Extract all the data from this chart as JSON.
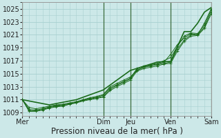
{
  "title": "",
  "xlabel": "Pression niveau de la mer( hPa )",
  "bg_color": "#cce8e8",
  "grid_color": "#a8d0d0",
  "line_color": "#1a6b1a",
  "ylim": [
    1008.5,
    1026.0
  ],
  "yticks": [
    1009,
    1011,
    1013,
    1015,
    1017,
    1019,
    1021,
    1023,
    1025
  ],
  "day_labels": [
    "Mer",
    "Dim",
    "Jeu",
    "Ven",
    "Sam"
  ],
  "day_positions": [
    0,
    12,
    16,
    22,
    28
  ],
  "vline_color": "#4a7a4a",
  "series": [
    [
      1011.0,
      1009.8,
      1009.6,
      1009.8,
      1010.0,
      1010.2,
      1010.3,
      1010.5,
      1010.7,
      1011.0,
      1011.3,
      1011.5,
      1011.8,
      1013.0,
      1013.5,
      1014.0,
      1014.5,
      1015.5,
      1016.0,
      1016.3,
      1016.5,
      1016.8,
      1018.0,
      1019.5,
      1020.5,
      1021.2,
      1021.0,
      1022.8,
      1025.0
    ],
    [
      1011.0,
      1009.5,
      1009.4,
      1009.6,
      1009.9,
      1010.1,
      1010.2,
      1010.4,
      1010.6,
      1010.9,
      1011.2,
      1011.4,
      1011.7,
      1012.8,
      1013.3,
      1013.8,
      1014.3,
      1015.8,
      1016.2,
      1016.4,
      1016.6,
      1017.0,
      1017.5,
      1019.2,
      1020.8,
      1021.3,
      1021.2,
      1022.5,
      1024.8
    ],
    [
      1011.0,
      1009.3,
      1009.3,
      1009.5,
      1009.8,
      1010.0,
      1010.1,
      1010.3,
      1010.6,
      1010.9,
      1011.1,
      1011.3,
      1011.5,
      1012.6,
      1013.2,
      1013.7,
      1014.2,
      1015.6,
      1016.0,
      1016.2,
      1016.4,
      1016.6,
      1016.8,
      1018.8,
      1020.2,
      1021.0,
      1021.0,
      1022.2,
      1024.5
    ],
    [
      1011.0,
      1009.2,
      1009.2,
      1009.4,
      1009.7,
      1009.9,
      1010.0,
      1010.3,
      1010.5,
      1010.8,
      1011.0,
      1011.2,
      1011.4,
      1012.4,
      1013.0,
      1013.5,
      1014.0,
      1015.4,
      1015.8,
      1016.0,
      1016.2,
      1016.5,
      1016.6,
      1018.5,
      1020.0,
      1020.8,
      1020.9,
      1022.0,
      1024.2
    ]
  ],
  "upper_series_x": [
    0,
    4,
    8,
    12,
    16,
    20,
    22,
    24,
    25,
    26,
    27,
    28
  ],
  "upper_series_y": [
    1011.0,
    1010.2,
    1011.0,
    1012.5,
    1015.5,
    1016.8,
    1016.9,
    1021.5,
    1021.5,
    1022.8,
    1024.5,
    1025.2
  ],
  "fontsize_xlabel": 8.5,
  "fontsize_ticks": 7
}
